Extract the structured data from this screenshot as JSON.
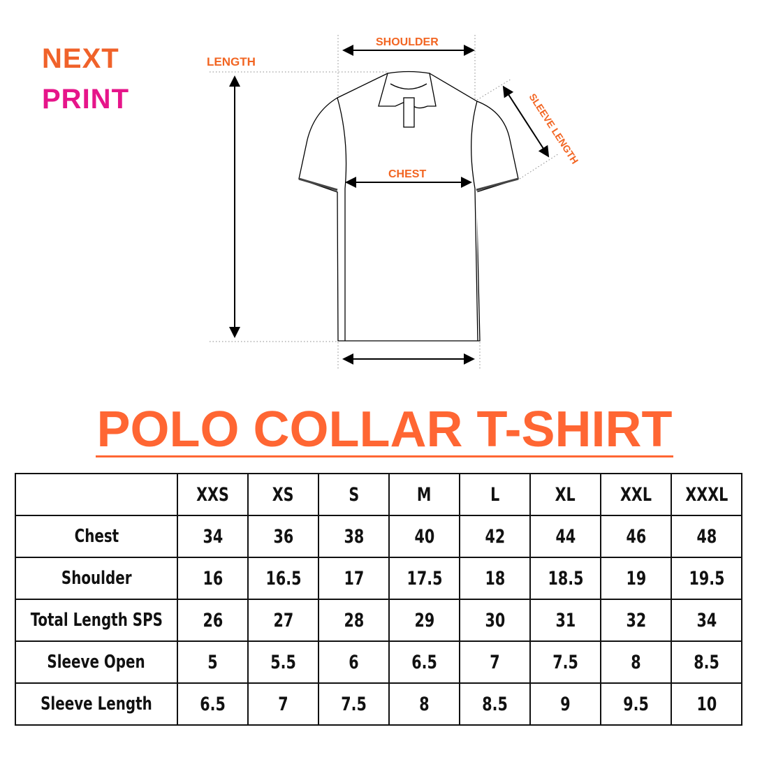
{
  "logo": {
    "line1": "NEXT",
    "line2": "PRINT",
    "orange": "#f0622a",
    "pink": "#e6158a"
  },
  "diagram": {
    "labels": {
      "shoulder": "SHOULDER",
      "length": "LENGTH",
      "sleeve_length": "SLEEVE LENGTH",
      "chest": "CHEST"
    },
    "accent": "#f26522"
  },
  "title": "POLO COLLAR T-SHIRT",
  "table": {
    "headers": [
      "",
      "XXS",
      "XS",
      "S",
      "M",
      "L",
      "XL",
      "XXL",
      "XXXL"
    ],
    "rows": [
      {
        "label": "Chest",
        "values": [
          "34",
          "36",
          "38",
          "40",
          "42",
          "44",
          "46",
          "48"
        ]
      },
      {
        "label": "Shoulder",
        "values": [
          "16",
          "16.5",
          "17",
          "17.5",
          "18",
          "18.5",
          "19",
          "19.5"
        ]
      },
      {
        "label": "Total Length SPS",
        "values": [
          "26",
          "27",
          "28",
          "29",
          "30",
          "31",
          "32",
          "34"
        ]
      },
      {
        "label": "Sleeve Open",
        "values": [
          "5",
          "5.5",
          "6",
          "6.5",
          "7",
          "7.5",
          "8",
          "8.5"
        ]
      },
      {
        "label": "Sleeve Length",
        "values": [
          "6.5",
          "7",
          "7.5",
          "8",
          "8.5",
          "9",
          "9.5",
          "10"
        ]
      }
    ]
  }
}
